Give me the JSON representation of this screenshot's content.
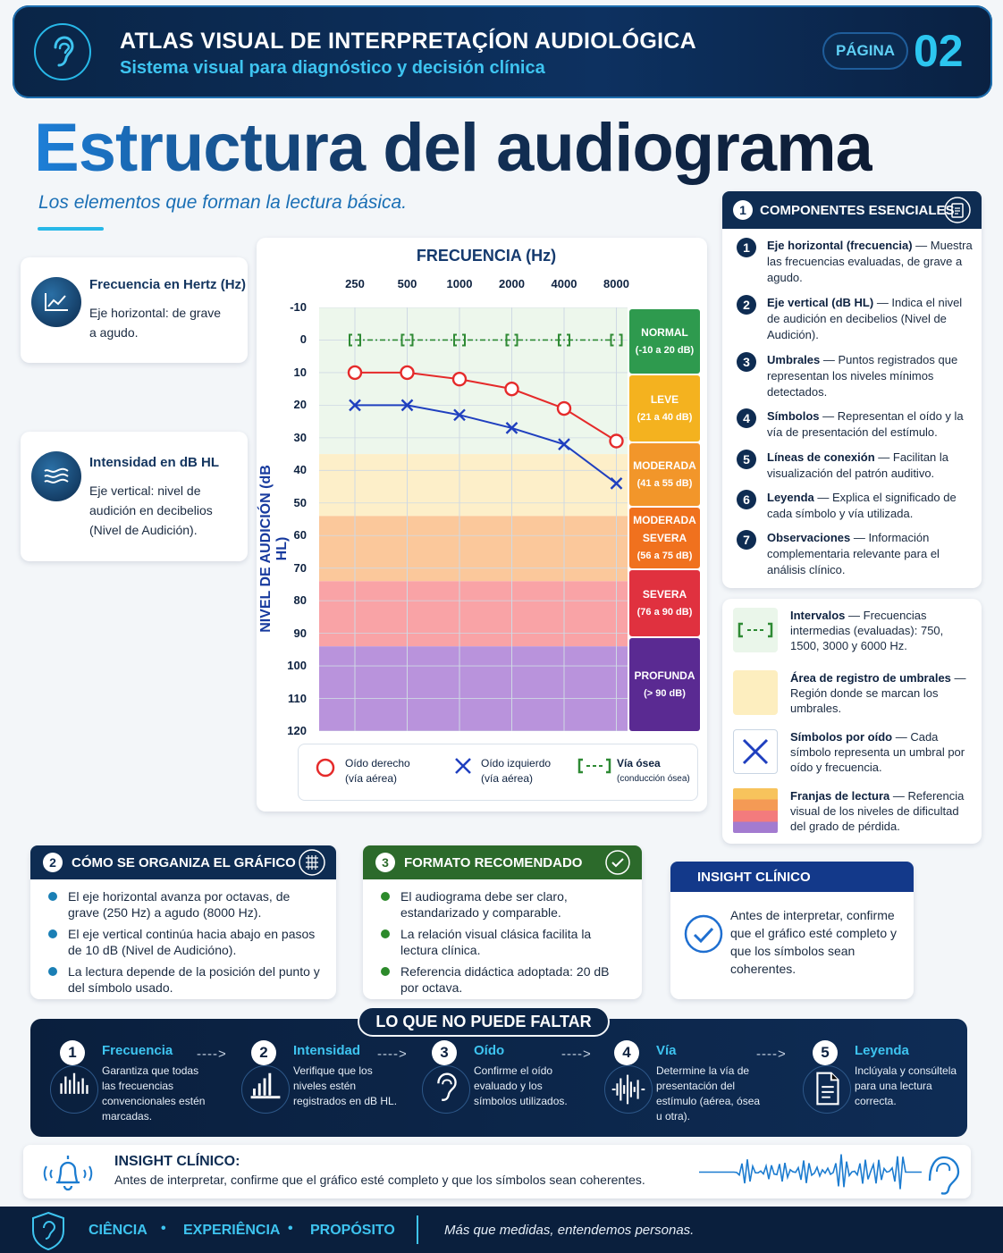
{
  "header": {
    "title": "ATLAS VISUAL DE INTERPRETAÇÍON AUDIOLÓGICA",
    "subtitle": "Sistema visual para diagnóstico y decisión clínica",
    "page_label": "PÁGINA",
    "page_number": "02"
  },
  "main": {
    "title": "Estructura del audiograma",
    "subtitle": "Los elementos que forman la lectura básica."
  },
  "left_cards": [
    {
      "title": "Frecuencia en Hertz (Hz)",
      "text": "Eje horizontal: de grave a agudo.",
      "icon": "line-chart-icon"
    },
    {
      "title": "Intensidad en dB HL",
      "text": "Eje vertical: nivel de audición en decibelios (Nivel de Audición).",
      "icon": "sound-wave-icon"
    }
  ],
  "chart_data": {
    "type": "line",
    "title": "FRECUENCIA (Hz)",
    "ylabel": "NIVEL DE AUDICIÓN (dB HL)",
    "x": [
      250,
      500,
      1000,
      2000,
      4000,
      8000
    ],
    "x_scale": "log",
    "ylim": [
      -10,
      120
    ],
    "y_inverted": true,
    "y_ticks": [
      -10,
      0,
      10,
      20,
      30,
      40,
      50,
      60,
      70,
      80,
      90,
      100,
      110,
      120
    ],
    "series": [
      {
        "name": "Oído derecho (vía aérea)",
        "marker": "circle",
        "color": "#e52a2a",
        "values": [
          10,
          10,
          12,
          15,
          21,
          31
        ]
      },
      {
        "name": "Oído izquierdo (vía aérea)",
        "marker": "x",
        "color": "#1f3fbf",
        "values": [
          20,
          20,
          23,
          27,
          32,
          44
        ]
      },
      {
        "name": "Vía ósea (conducción ósea)",
        "marker": "bracket",
        "color": "#2e8a34",
        "values": [
          0,
          0,
          0,
          0,
          0,
          0
        ]
      }
    ],
    "bands": [
      {
        "label": "NORMAL",
        "range": "(-10 a 20 dB)",
        "from": -10,
        "to": 20,
        "color": "#2e9a4e"
      },
      {
        "label": "LEVE",
        "range": "(21 a 40 dB)",
        "from": 20,
        "to": 40,
        "color": "#f4b21f"
      },
      {
        "label": "MODERADA",
        "range": "(41 a 55 dB)",
        "from": 40,
        "to": 55,
        "color": "#f2962a"
      },
      {
        "label": "MODERADA SEVERA",
        "range": "(56 a 75 dB)",
        "from": 55,
        "to": 75,
        "color": "#f0711e"
      },
      {
        "label": "SEVERA",
        "range": "(76 a 90 dB)",
        "from": 75,
        "to": 90,
        "color": "#e0313f"
      },
      {
        "label": "PROFUNDA",
        "range": "(> 90 dB)",
        "from": 90,
        "to": 120,
        "color": "#5a2a92"
      }
    ],
    "grid": true
  },
  "legend": {
    "right_main": "Oído derecho",
    "right_sub": "(vía aérea)",
    "left_main": "Oído izquierdo",
    "left_sub": "(vía aérea)",
    "bone_main": "Vía ósea",
    "bone_sub": "(conducción ósea)"
  },
  "components": {
    "number": "1",
    "title": "COMPONENTES ESENCIALES",
    "items": [
      {
        "n": "1",
        "b": "Eje horizontal (frecuencia)",
        "t": " — Muestra las frecuencias evaluadas, de grave a agudo."
      },
      {
        "n": "2",
        "b": "Eje vertical (dB HL)",
        "t": " — Indica el nivel de audición en decibelios (Nivel de Audición)."
      },
      {
        "n": "3",
        "b": "Umbrales",
        "t": " — Puntos registrados que representan los niveles mínimos detectados."
      },
      {
        "n": "4",
        "b": "Símbolos",
        "t": " — Representan el oído y la vía de presentación del estímulo."
      },
      {
        "n": "5",
        "b": "Líneas de conexión",
        "t": " — Facilitan la visualización del patrón auditivo."
      },
      {
        "n": "6",
        "b": "Leyenda",
        "t": " — Explica el significado de cada símbolo y vía utilizada."
      },
      {
        "n": "7",
        "b": "Observaciones",
        "t": " — Información complementaria relevante para el análisis clínico."
      }
    ]
  },
  "key_items": [
    {
      "b": "Intervalos",
      "t": " — Frecuencias intermedias (evaluadas): 750, 1500, 3000 y 6000 Hz."
    },
    {
      "b": "Área de registro de umbrales",
      "t": " — Región donde se marcan los umbrales."
    },
    {
      "b": "Símbolos por oído",
      "t": " — Cada símbolo representa un umbral por oído y frecuencia."
    },
    {
      "b": "Franjas de lectura",
      "t": " — Referencia visual de los niveles de dificultad del grado de pérdida."
    }
  ],
  "box2": {
    "number": "2",
    "title": "CÓMO SE ORGANIZA EL GRÁFICO",
    "items": [
      "El eje horizontal avanza por octavas, de grave (250 Hz) a agudo (8000 Hz).",
      "El eje vertical continúa hacia abajo en pasos de 10 dB (Nivel de Audicióno).",
      "La lectura depende de la posición del punto y del símbolo usado."
    ]
  },
  "box3": {
    "number": "3",
    "title": "FORMATO RECOMENDADO",
    "items": [
      "El audiograma debe ser claro, estandarizado y comparable.",
      "La relación visual clásica facilita la lectura clínica.",
      "Referencia didáctica adoptada: 20 dB por octava."
    ]
  },
  "insight_box": {
    "title": "INSIGHT CLÍNICO",
    "text": "Antes de interpretar, confirme que el gráfico esté completo y que los símbolos sean coherentes."
  },
  "no_faltar": {
    "title": "LO QUE NO PUEDE FALTAR",
    "steps": [
      {
        "n": "1",
        "title": "Frecuencia",
        "text": "Garantiza que todas las frecuencias convencionales estén marcadas.",
        "icon": "frequency-bars-icon"
      },
      {
        "n": "2",
        "title": "Intensidad",
        "text": "Verifique que los niveles estén registrados en dB HL.",
        "icon": "intensity-bars-icon"
      },
      {
        "n": "3",
        "title": "Oído",
        "text": "Confirme el oído evaluado y los símbolos utilizados.",
        "icon": "ear-icon"
      },
      {
        "n": "4",
        "title": "Vía",
        "text": "Determine la vía de presentación del estímulo (aérea, ósea u otra).",
        "icon": "waveform-icon"
      },
      {
        "n": "5",
        "title": "Leyenda",
        "text": "Inclúyala y consúltela para una lectura correcta.",
        "icon": "document-icon"
      }
    ],
    "arrow": "---->"
  },
  "bottom_insight": {
    "title": "INSIGHT CLÍNICO:",
    "text": "Antes de interpretar, confirme que el gráfico esté completo y que los símbolos sean coherentes."
  },
  "footer": {
    "w1": "CIÊNCIA",
    "w2": "EXPERIÊNCIA",
    "w3": "PROPÓSITO",
    "sep": "•",
    "tagline": "Más que medidas, entendemos personas."
  }
}
